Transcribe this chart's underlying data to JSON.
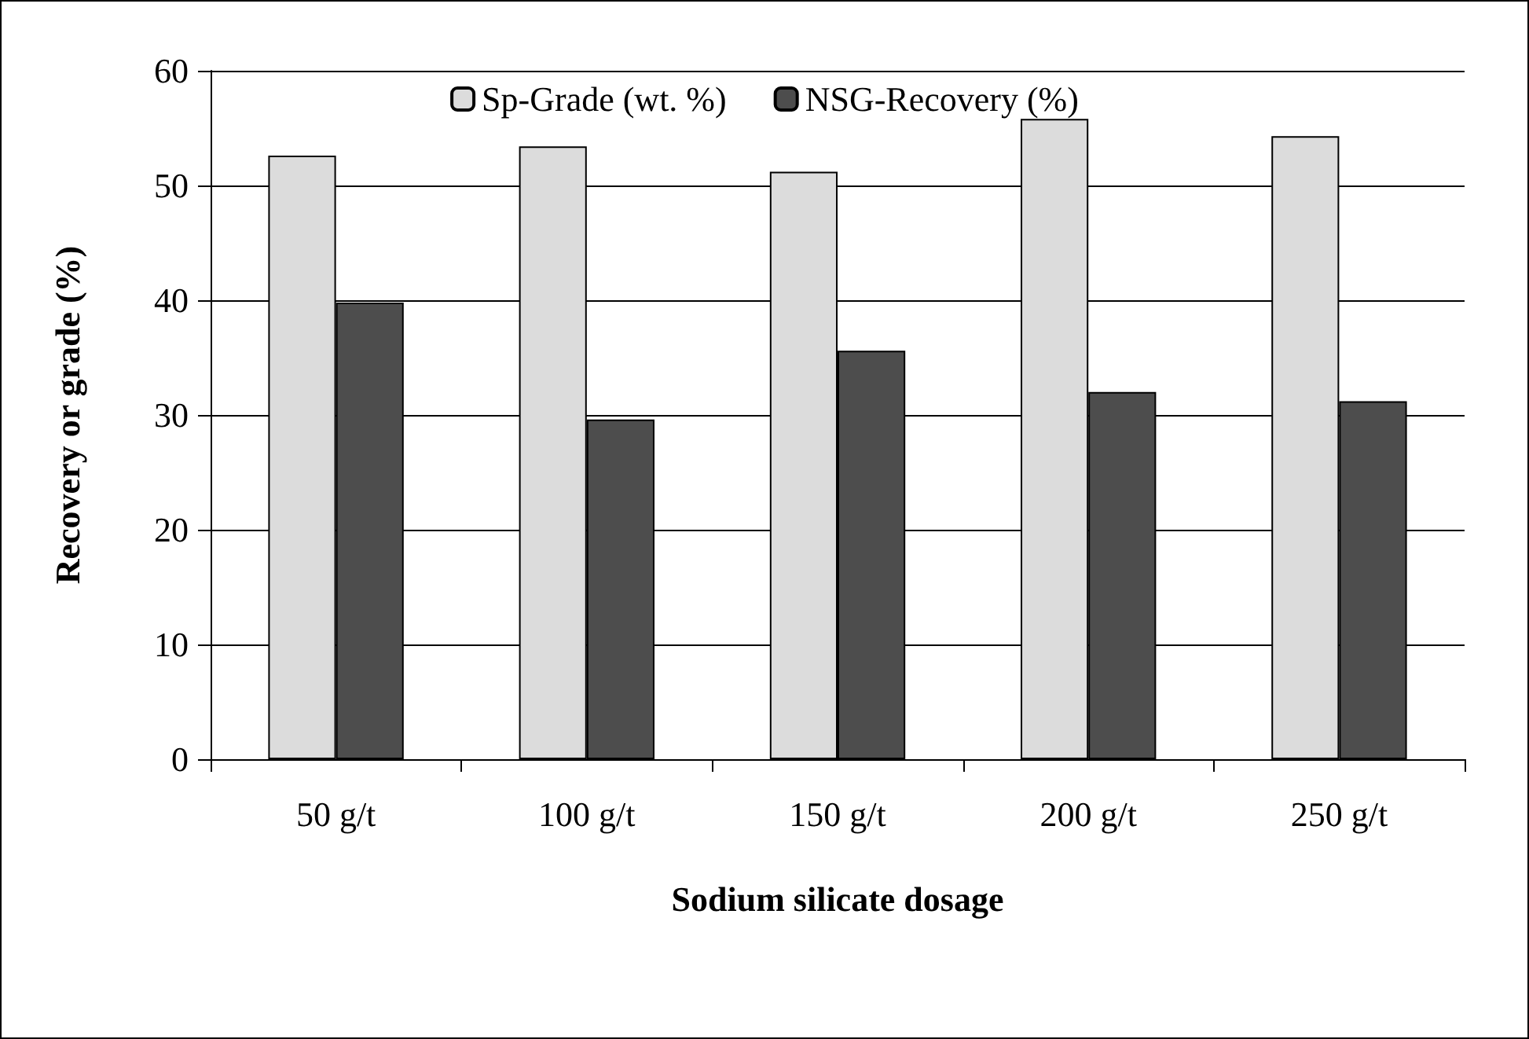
{
  "chart_data": {
    "type": "bar",
    "xlabel": "Sodium silicate dosage",
    "ylabel": "Recovery or grade (%)",
    "categories": [
      "50 g/t",
      "100 g/t",
      "150 g/t",
      "200 g/t",
      "250 g/t"
    ],
    "series": [
      {
        "name": "Sp-Grade (wt. %)",
        "color": "#dcdcdc",
        "values": [
          52.6,
          53.4,
          51.2,
          55.8,
          54.3
        ]
      },
      {
        "name": "NSG-Recovery (%)",
        "color": "#4d4d4d",
        "values": [
          39.8,
          29.6,
          35.6,
          32.0,
          31.2
        ]
      }
    ],
    "ylim": [
      0,
      60
    ],
    "yticks": [
      0,
      10,
      20,
      30,
      40,
      50,
      60
    ],
    "grid": "y",
    "legend": "top"
  }
}
